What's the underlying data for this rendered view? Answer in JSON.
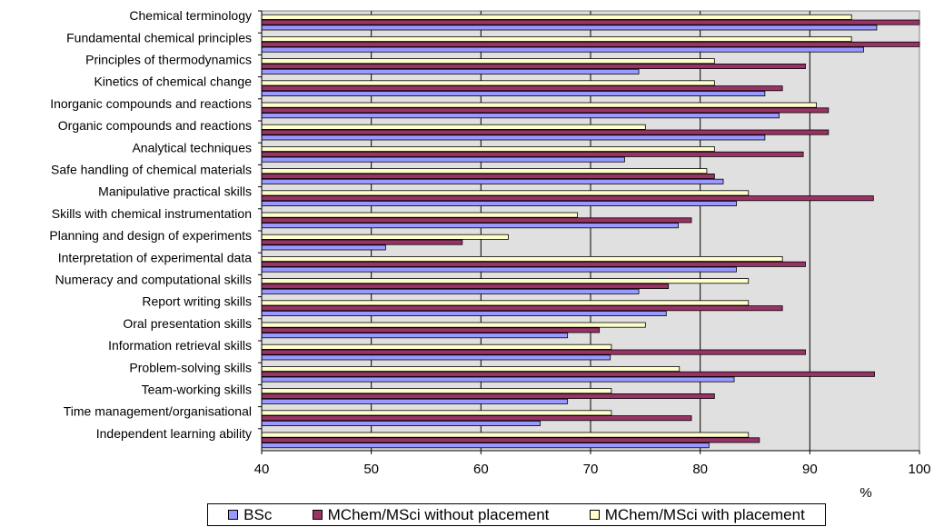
{
  "chart_data": {
    "type": "bar",
    "orientation": "horizontal",
    "categories": [
      "Chemical terminology",
      "Fundamental chemical principles",
      "Principles of thermodynamics",
      "Kinetics of chemical change",
      "Inorganic compounds and reactions",
      "Organic compounds and reactions",
      "Analytical techniques",
      "Safe handling of chemical materials",
      "Manipulative practical skills",
      "Skills with chemical instrumentation",
      "Planning and design of experiments",
      "Interpretation of experimental data",
      "Numeracy and computational skills",
      "Report writing skills",
      "Oral presentation skills",
      "Information retrieval skills",
      "Problem-solving skills",
      "Team-working skills",
      "Time management/organisational",
      "Independent learning ability"
    ],
    "series": [
      {
        "name": "BSc",
        "color": "#9999ff",
        "values": [
          96.1,
          94.9,
          74.4,
          85.9,
          87.2,
          85.9,
          73.1,
          82.1,
          83.3,
          78.0,
          51.3,
          83.3,
          74.4,
          76.9,
          67.9,
          71.8,
          83.1,
          67.9,
          65.4,
          80.8
        ]
      },
      {
        "name": "MChem/MSci without placement",
        "color": "#993366",
        "values": [
          100,
          100,
          89.6,
          87.5,
          91.7,
          91.7,
          89.4,
          81.3,
          95.8,
          79.2,
          58.3,
          89.6,
          77.1,
          87.5,
          70.8,
          89.6,
          95.9,
          81.3,
          79.2,
          85.4
        ]
      },
      {
        "name": "MChem/MSci with placement",
        "color": "#ffffcc",
        "values": [
          93.8,
          93.8,
          81.3,
          81.3,
          90.6,
          75.0,
          81.3,
          80.6,
          84.4,
          68.8,
          62.5,
          87.5,
          84.4,
          84.4,
          75.0,
          71.9,
          78.1,
          71.9,
          71.9,
          84.4
        ]
      }
    ],
    "xlim": [
      40,
      100
    ],
    "xticks": [
      "40",
      "50",
      "60",
      "70",
      "80",
      "90",
      "100"
    ],
    "xlabel": "%",
    "grid": "vertical",
    "plot_background": "#e0e0e0",
    "legend_position": "bottom"
  }
}
